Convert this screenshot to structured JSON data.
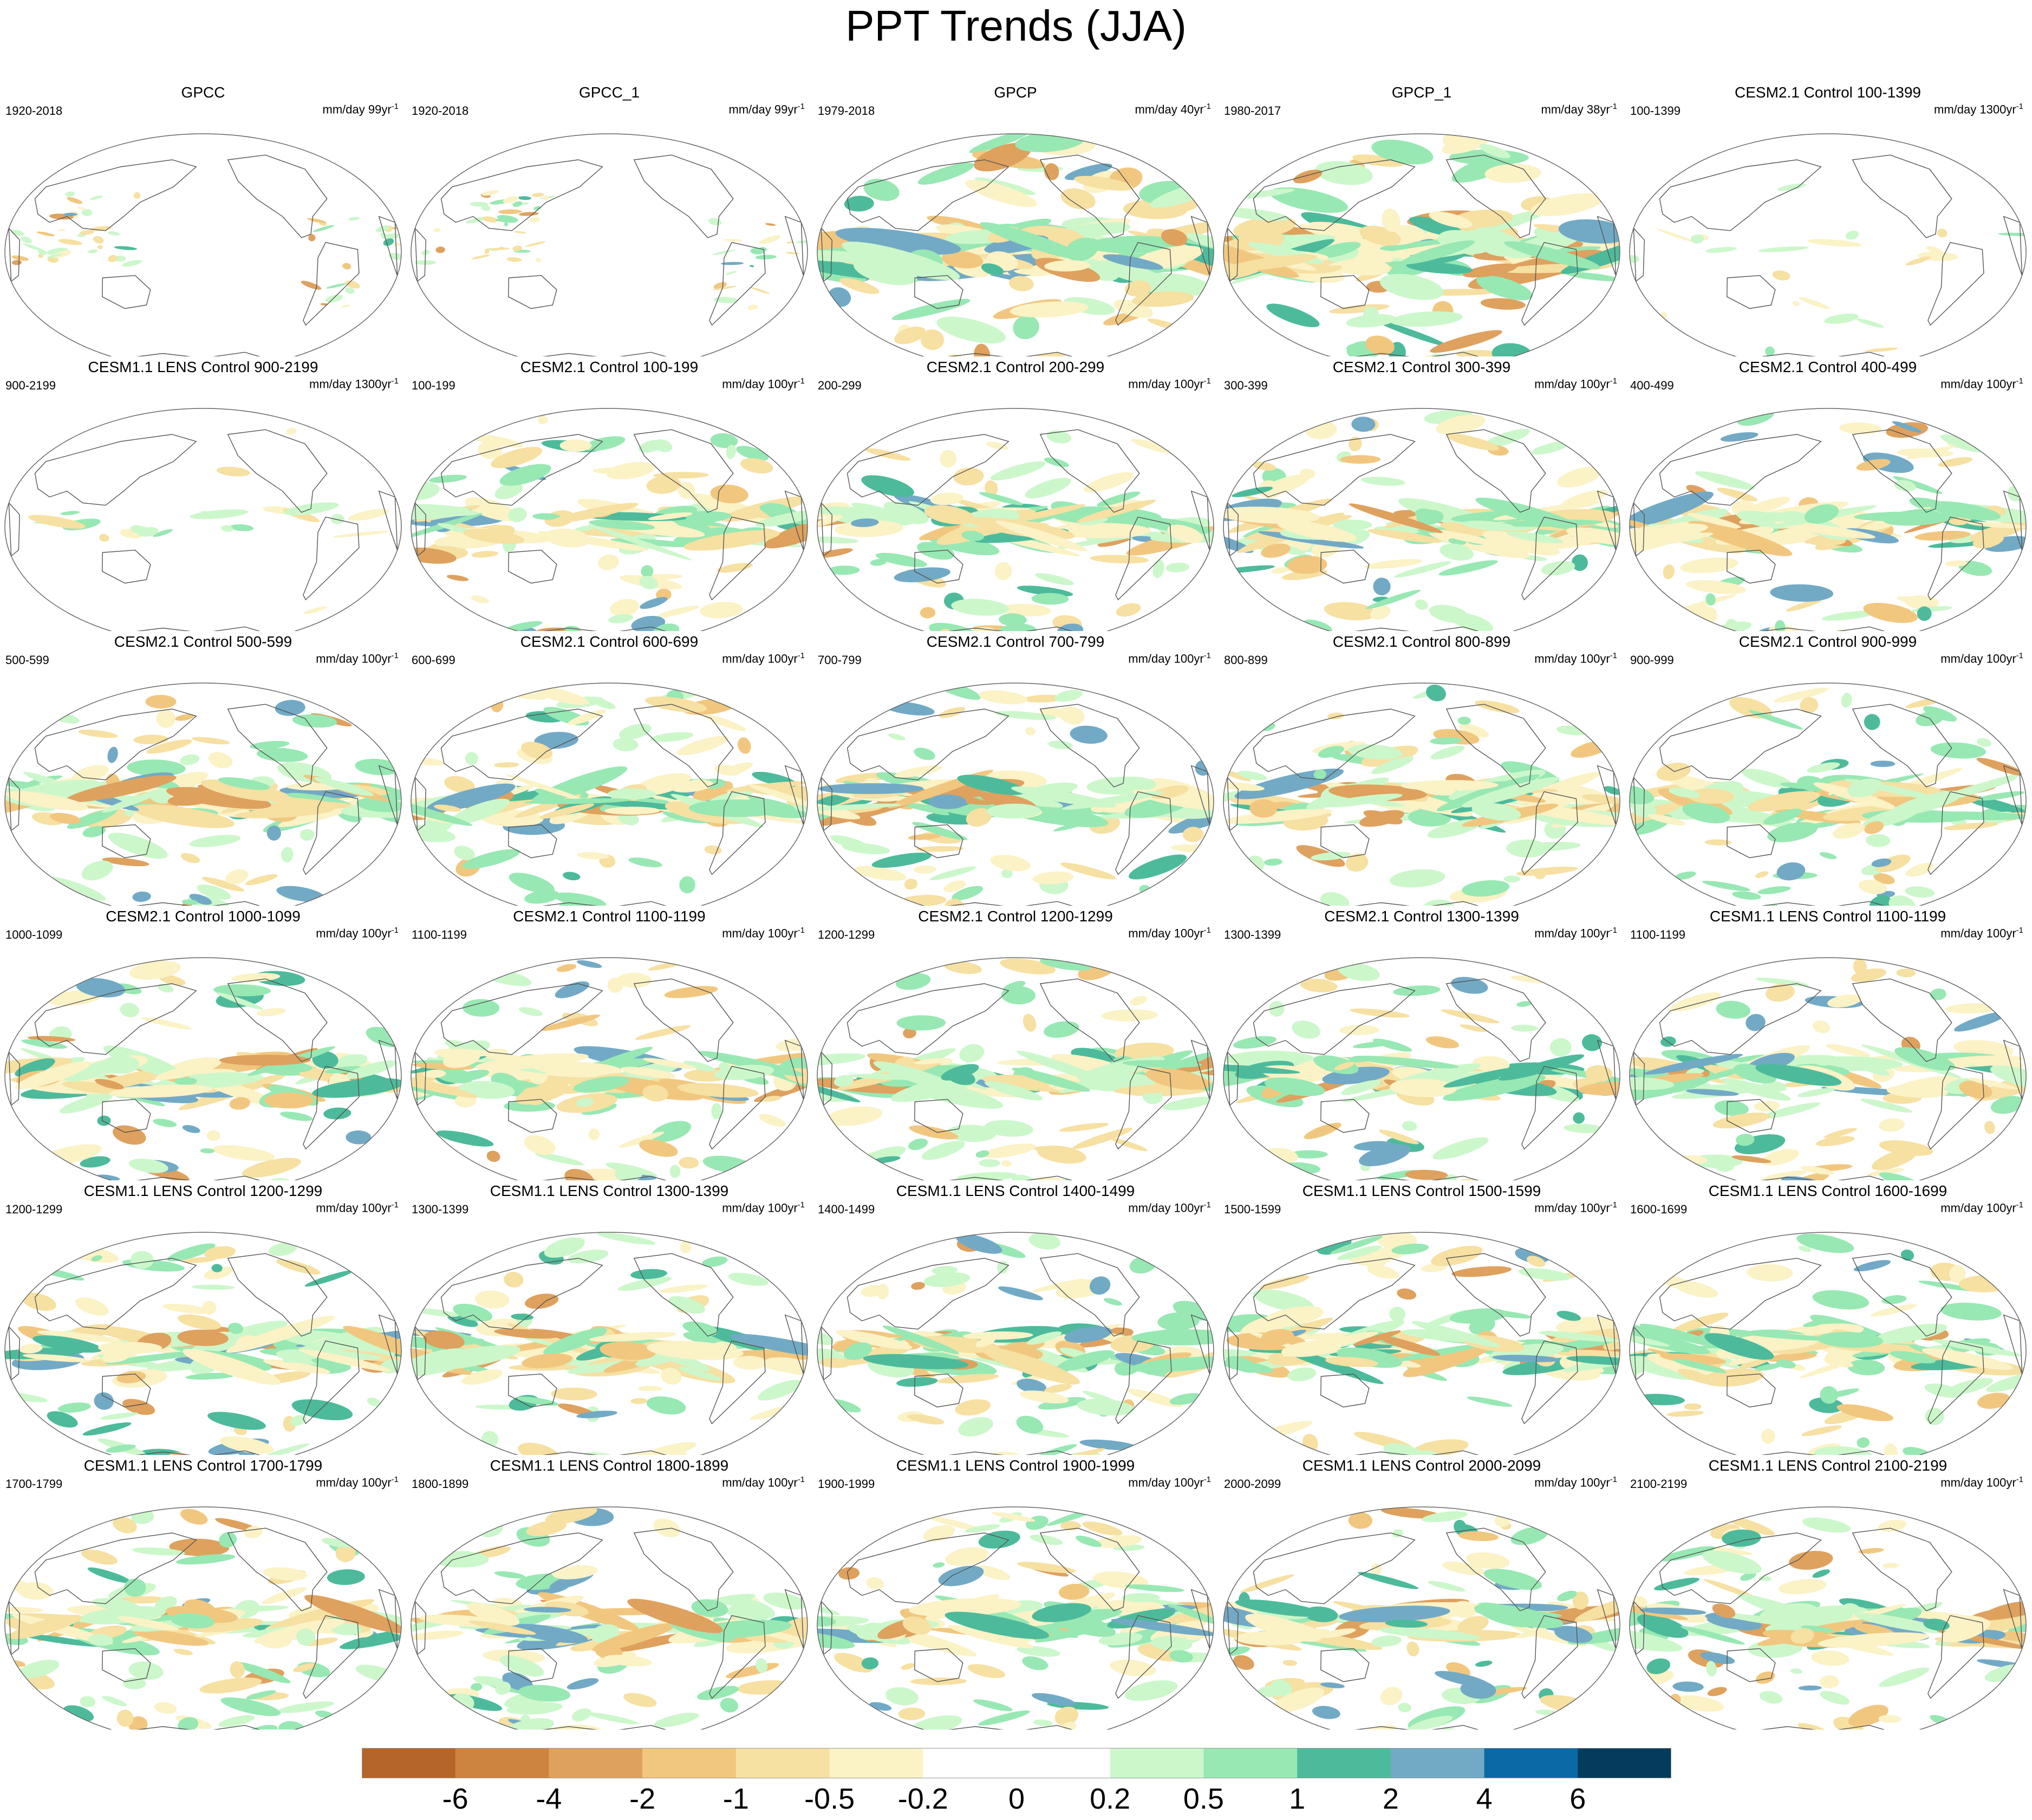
{
  "title": "PPT Trends (JJA)",
  "panels": [
    {
      "title": "GPCC",
      "range": "1920-2018",
      "units": "mm/day 99yr",
      "exp": "-1",
      "pattern": "obs"
    },
    {
      "title": "GPCC_1",
      "range": "1920-2018",
      "units": "mm/day 99yr",
      "exp": "-1",
      "pattern": "obs"
    },
    {
      "title": "GPCP",
      "range": "1979-2018",
      "units": "mm/day 40yr",
      "exp": "-1",
      "pattern": "strong"
    },
    {
      "title": "GPCP_1",
      "range": "1980-2017",
      "units": "mm/day 38yr",
      "exp": "-1",
      "pattern": "strong"
    },
    {
      "title": "CESM2.1 Control 100-1399",
      "range": "100-1399",
      "units": "mm/day 1300yr",
      "exp": "-1",
      "pattern": "weak"
    },
    {
      "title": "CESM1.1 LENS Control 900-2199",
      "range": "900-2199",
      "units": "mm/day 1300yr",
      "exp": "-1",
      "pattern": "weak"
    },
    {
      "title": "CESM2.1 Control 100-199",
      "range": "100-199",
      "units": "mm/day 100yr",
      "exp": "-1",
      "pattern": "model"
    },
    {
      "title": "CESM2.1 Control 200-299",
      "range": "200-299",
      "units": "mm/day 100yr",
      "exp": "-1",
      "pattern": "model"
    },
    {
      "title": "CESM2.1 Control 300-399",
      "range": "300-399",
      "units": "mm/day 100yr",
      "exp": "-1",
      "pattern": "model"
    },
    {
      "title": "CESM2.1 Control 400-499",
      "range": "400-499",
      "units": "mm/day 100yr",
      "exp": "-1",
      "pattern": "model"
    },
    {
      "title": "CESM2.1 Control 500-599",
      "range": "500-599",
      "units": "mm/day 100yr",
      "exp": "-1",
      "pattern": "model"
    },
    {
      "title": "CESM2.1 Control 600-699",
      "range": "600-699",
      "units": "mm/day 100yr",
      "exp": "-1",
      "pattern": "model"
    },
    {
      "title": "CESM2.1 Control 700-799",
      "range": "700-799",
      "units": "mm/day 100yr",
      "exp": "-1",
      "pattern": "model"
    },
    {
      "title": "CESM2.1 Control 800-899",
      "range": "800-899",
      "units": "mm/day 100yr",
      "exp": "-1",
      "pattern": "model"
    },
    {
      "title": "CESM2.1 Control 900-999",
      "range": "900-999",
      "units": "mm/day 100yr",
      "exp": "-1",
      "pattern": "model"
    },
    {
      "title": "CESM2.1 Control 1000-1099",
      "range": "1000-1099",
      "units": "mm/day 100yr",
      "exp": "-1",
      "pattern": "model"
    },
    {
      "title": "CESM2.1 Control 1100-1199",
      "range": "1100-1199",
      "units": "mm/day 100yr",
      "exp": "-1",
      "pattern": "model"
    },
    {
      "title": "CESM2.1 Control 1200-1299",
      "range": "1200-1299",
      "units": "mm/day 100yr",
      "exp": "-1",
      "pattern": "model"
    },
    {
      "title": "CESM2.1 Control 1300-1399",
      "range": "1300-1399",
      "units": "mm/day 100yr",
      "exp": "-1",
      "pattern": "model"
    },
    {
      "title": "CESM1.1 LENS Control 1100-1199",
      "range": "1100-1199",
      "units": "mm/day 100yr",
      "exp": "-1",
      "pattern": "model"
    },
    {
      "title": "CESM1.1 LENS Control 1200-1299",
      "range": "1200-1299",
      "units": "mm/day 100yr",
      "exp": "-1",
      "pattern": "model"
    },
    {
      "title": "CESM1.1 LENS Control 1300-1399",
      "range": "1300-1399",
      "units": "mm/day 100yr",
      "exp": "-1",
      "pattern": "model"
    },
    {
      "title": "CESM1.1 LENS Control 1400-1499",
      "range": "1400-1499",
      "units": "mm/day 100yr",
      "exp": "-1",
      "pattern": "model"
    },
    {
      "title": "CESM1.1 LENS Control 1500-1599",
      "range": "1500-1599",
      "units": "mm/day 100yr",
      "exp": "-1",
      "pattern": "model"
    },
    {
      "title": "CESM1.1 LENS Control 1600-1699",
      "range": "1600-1699",
      "units": "mm/day 100yr",
      "exp": "-1",
      "pattern": "model"
    },
    {
      "title": "CESM1.1 LENS Control 1700-1799",
      "range": "1700-1799",
      "units": "mm/day 100yr",
      "exp": "-1",
      "pattern": "model"
    },
    {
      "title": "CESM1.1 LENS Control 1800-1899",
      "range": "1800-1899",
      "units": "mm/day 100yr",
      "exp": "-1",
      "pattern": "model"
    },
    {
      "title": "CESM1.1 LENS Control 1900-1999",
      "range": "1900-1999",
      "units": "mm/day 100yr",
      "exp": "-1",
      "pattern": "model"
    },
    {
      "title": "CESM1.1 LENS Control 2000-2099",
      "range": "2000-2099",
      "units": "mm/day 100yr",
      "exp": "-1",
      "pattern": "model"
    },
    {
      "title": "CESM1.1 LENS Control 2100-2199",
      "range": "2100-2199",
      "units": "mm/day 100yr",
      "exp": "-1",
      "pattern": "model"
    }
  ],
  "colorbar": {
    "colors": [
      "#b5652a",
      "#cc8440",
      "#dea15e",
      "#f1c77f",
      "#f6e0a2",
      "#fbf2c6",
      "#ffffff",
      "#ffffff",
      "#ccf7cb",
      "#98e8b3",
      "#4dbb9b",
      "#72aac6",
      "#0b6aa6",
      "#053b5c"
    ],
    "labels": [
      "-6",
      "-4",
      "-2",
      "-1",
      "-0.5",
      "-0.2",
      "0",
      "0.2",
      "0.5",
      "1",
      "2",
      "4",
      "6"
    ]
  }
}
